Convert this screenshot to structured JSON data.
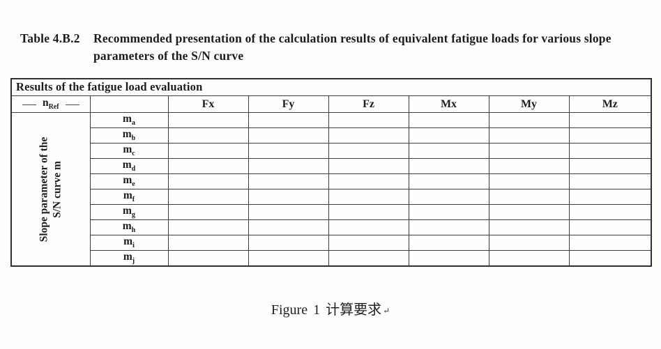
{
  "page": {
    "background": "#fdfdfc",
    "text_color": "#1c1c1c",
    "border_color": "#3c3c3c"
  },
  "heading": {
    "label": "Table 4.B.2",
    "text": "Recommended presentation of the calculation results of equivalent fatigue loads for various slope parameters of the S/N curve"
  },
  "table": {
    "title": "Results of the fatigue load evaluation",
    "corner": {
      "base": "n",
      "sub": "Ref"
    },
    "row_group": {
      "line1": "Slope parameter of the",
      "line2": "S/N curve m"
    },
    "columns": [
      "Fx",
      "Fy",
      "Fz",
      "Mx",
      "My",
      "Mz"
    ],
    "rows": [
      {
        "base": "m",
        "sub": "a",
        "values": [
          "",
          "",
          "",
          "",
          "",
          ""
        ]
      },
      {
        "base": "m",
        "sub": "b",
        "values": [
          "",
          "",
          "",
          "",
          "",
          ""
        ]
      },
      {
        "base": "m",
        "sub": "c",
        "values": [
          "",
          "",
          "",
          "",
          "",
          ""
        ]
      },
      {
        "base": "m",
        "sub": "d",
        "values": [
          "",
          "",
          "",
          "",
          "",
          ""
        ]
      },
      {
        "base": "m",
        "sub": "e",
        "values": [
          "",
          "",
          "",
          "",
          "",
          ""
        ]
      },
      {
        "base": "m",
        "sub": "f",
        "values": [
          "",
          "",
          "",
          "",
          "",
          ""
        ]
      },
      {
        "base": "m",
        "sub": "g",
        "values": [
          "",
          "",
          "",
          "",
          "",
          ""
        ]
      },
      {
        "base": "m",
        "sub": "h",
        "values": [
          "",
          "",
          "",
          "",
          "",
          ""
        ]
      },
      {
        "base": "m",
        "sub": "i",
        "values": [
          "",
          "",
          "",
          "",
          "",
          ""
        ]
      },
      {
        "base": "m",
        "sub": "j",
        "values": [
          "",
          "",
          "",
          "",
          "",
          ""
        ]
      }
    ]
  },
  "caption": {
    "text": "Figure 1 计算要求",
    "mark": "↵"
  }
}
